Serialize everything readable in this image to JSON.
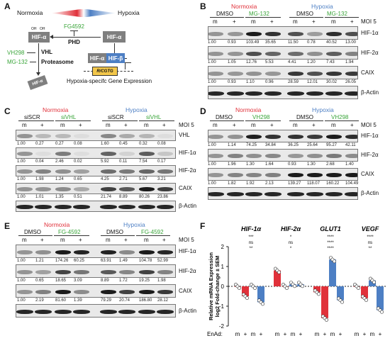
{
  "panels": {
    "a": "A",
    "b": "B",
    "c": "C",
    "d": "D",
    "e": "E",
    "f": "F"
  },
  "schema": {
    "normoxia": "Normoxia",
    "hypoxia": "Hypoxia",
    "fg4592": "FG4592",
    "phd": "PHD",
    "hif_alpha": "HIF-α",
    "hif_beta": "HIF-β",
    "oh_left": "OH",
    "oh_right": "OH",
    "vh298": "VH298",
    "vhl": "VHL",
    "mg132": "MG-132",
    "proteasome": "Proteasome",
    "hre": "R/CGTG",
    "caption": "Hypoxia-specifc Gene Expression",
    "degraded": "HIF-α",
    "colors": {
      "red": "#e0313a",
      "blue": "#4d7fc4",
      "gray": "#7f7f7f"
    }
  },
  "moi": "MOI 5",
  "blot_b": {
    "header": {
      "normoxia": "Normoxia",
      "hypoxia": "Hypoxia",
      "dmso1": "DMSO",
      "drug1": "MG-132",
      "dmso2": "DMSO",
      "drug2": "MG-132"
    },
    "lanes": [
      "m",
      "+",
      "m",
      "+",
      "m",
      "+",
      "m",
      "+"
    ],
    "rows": [
      {
        "label": "HIF-1α",
        "values": [
          "1.00",
          "0.93",
          "103.49",
          "35.65",
          "11.50",
          "0.78",
          "40.52",
          "13.00"
        ]
      },
      {
        "label": "HIF-2α",
        "values": [
          "1.00",
          "1.05",
          "12.76",
          "5.53",
          "4.41",
          "1.20",
          "7.43",
          "1.94"
        ]
      },
      {
        "label": "CAIX",
        "values": [
          "1.00",
          "0.93",
          "1.10",
          "0.96",
          "28.59",
          "12.01",
          "30.02",
          "26.05"
        ]
      },
      {
        "label": "β-Actin",
        "values": []
      }
    ]
  },
  "blot_c": {
    "header": {
      "normoxia": "Normoxia",
      "hypoxia": "Hypoxia",
      "s1": "siSCR",
      "s2": "siVHL",
      "s3": "siSCR",
      "s4": "siVHL"
    },
    "lanes": [
      "m",
      "+",
      "m",
      "+",
      "m",
      "+",
      "m",
      "+"
    ],
    "rows": [
      {
        "label": "VHL",
        "values": [
          "1.00",
          "0.27",
          "0.27",
          "0.08",
          "1.60",
          "0.45",
          "0.32",
          "0.08"
        ]
      },
      {
        "label": "HIF-1α",
        "values": [
          "1.00",
          "0.04",
          "2.46",
          "0.02",
          "5.92",
          "0.11",
          "7.54",
          "0.17"
        ]
      },
      {
        "label": "HIF-2α",
        "values": [
          "1.00",
          "1.98",
          "1.24",
          "0.65",
          "4.25",
          "2.71",
          "5.67",
          "3.21"
        ]
      },
      {
        "label": "CAIX",
        "values": [
          "1.00",
          "1.01",
          "1.35",
          "0.51",
          "21.74",
          "8.89",
          "80.26",
          "23.86"
        ]
      },
      {
        "label": "β-Actin",
        "values": []
      }
    ]
  },
  "blot_d": {
    "header": {
      "normoxia": "Normoxia",
      "hypoxia": "Hypoxia",
      "dmso1": "DMSO",
      "drug1": "VH298",
      "dmso2": "DMSO",
      "drug2": "VH298"
    },
    "lanes": [
      "m",
      "+",
      "m",
      "+",
      "m",
      "+",
      "m",
      "+"
    ],
    "rows": [
      {
        "label": "HIF-1α",
        "values": [
          "1.00",
          "1.14",
          "74.25",
          "34.84",
          "36.25",
          "25.64",
          "95.27",
          "42.11"
        ]
      },
      {
        "label": "HIF-2α",
        "values": [
          "1.00",
          "1.96",
          "1.30",
          "1.64",
          "0.93",
          "1.30",
          "2.68",
          "1.40"
        ]
      },
      {
        "label": "CAIX",
        "values": [
          "1.00",
          "1.82",
          "1.92",
          "2.13",
          "139.27",
          "118.07",
          "160.22",
          "104.49"
        ]
      },
      {
        "label": "β-Actin",
        "values": []
      }
    ]
  },
  "blot_e": {
    "header": {
      "normoxia": "Normoxia",
      "hypoxia": "Hypoxia",
      "dmso1": "DMSO",
      "drug1": "FG-4592",
      "dmso2": "DMSO",
      "drug2": "FG-4592"
    },
    "lanes": [
      "m",
      "+",
      "m",
      "+",
      "m",
      "+",
      "m",
      "+"
    ],
    "rows": [
      {
        "label": "HIF-1α",
        "values": [
          "1.00",
          "1.21",
          "174.26",
          "60.25",
          "63.91",
          "1.49",
          "104.78",
          "52.99"
        ]
      },
      {
        "label": "HIF-2α",
        "values": [
          "1.00",
          "0.65",
          "18.65",
          "3.09",
          "8.89",
          "1.72",
          "19.25",
          "1.98"
        ]
      },
      {
        "label": "CAIX",
        "values": [
          "1.00",
          "2.19",
          "81.60",
          "1.39",
          "79.29",
          "20.74",
          "186.80",
          "28.12"
        ]
      },
      {
        "label": "β-Actin",
        "values": []
      }
    ]
  },
  "chart_data": {
    "type": "bar",
    "ylabel": "Relative mRNA Expression log2 Fold-change ± SEM",
    "xlabel": "EnAd:",
    "ylim": [
      -2,
      2
    ],
    "yticks": [
      "2",
      "1",
      "0",
      "-1",
      "-2"
    ],
    "genes": [
      "HIF-1α",
      "HIF-2α",
      "GLUT1",
      "VEGF"
    ],
    "categories": [
      "m",
      "+",
      "m",
      "+"
    ],
    "series": [
      {
        "condition": "normoxia",
        "color": "#e0313a"
      },
      {
        "condition": "hypoxia",
        "color": "#4d7fc4"
      }
    ],
    "groups": [
      {
        "gene": "HIF-1α",
        "values": [
          0.0,
          -0.5,
          0.0,
          -0.8
        ],
        "sig": [
          "**",
          "ns",
          "***"
        ]
      },
      {
        "gene": "HIF-2α",
        "values": [
          0.8,
          0.0,
          0.1,
          0.1
        ],
        "sig": [
          "*",
          "ns",
          "*"
        ]
      },
      {
        "gene": "GLUT1",
        "values": [
          -0.3,
          -1.6,
          1.35,
          -0.7
        ],
        "sig": [
          "****",
          "****",
          "****",
          "*"
        ]
      },
      {
        "gene": "VEGF",
        "values": [
          0.0,
          -0.6,
          0.3,
          -1.2
        ],
        "sig": [
          "**",
          "ns",
          "****"
        ]
      }
    ]
  }
}
